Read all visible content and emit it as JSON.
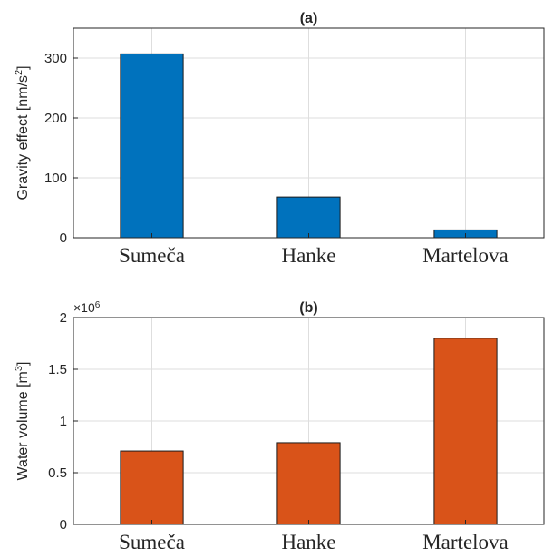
{
  "chart_data": [
    {
      "type": "bar",
      "title": "(a)",
      "ylabel_base": "Gravity effect [nm/s",
      "ylabel_sup": "2",
      "ylabel_close": "]",
      "categories": [
        "Sumeča",
        "Hanke",
        "Martelova"
      ],
      "values": [
        307,
        68,
        13
      ],
      "ylim": [
        0,
        350
      ],
      "yticks": [
        0,
        100,
        200,
        300
      ],
      "ytick_labels": [
        "0",
        "100",
        "200",
        "300"
      ],
      "grid": true,
      "color": "#0072BD"
    },
    {
      "type": "bar",
      "title": "(b)",
      "ylabel_base": "Water volume [m",
      "ylabel_sup": "3",
      "ylabel_close": "]",
      "exponent_label": "×10",
      "exponent_sup": "6",
      "categories": [
        "Sumeča",
        "Hanke",
        "Martelova"
      ],
      "values": [
        710000,
        790000,
        1800000
      ],
      "ylim": [
        0,
        2000000
      ],
      "yticks": [
        0,
        500000,
        1000000,
        1500000,
        2000000
      ],
      "ytick_labels": [
        "0",
        "0.5",
        "1",
        "1.5",
        "2"
      ],
      "grid": true,
      "color": "#D95319"
    }
  ]
}
